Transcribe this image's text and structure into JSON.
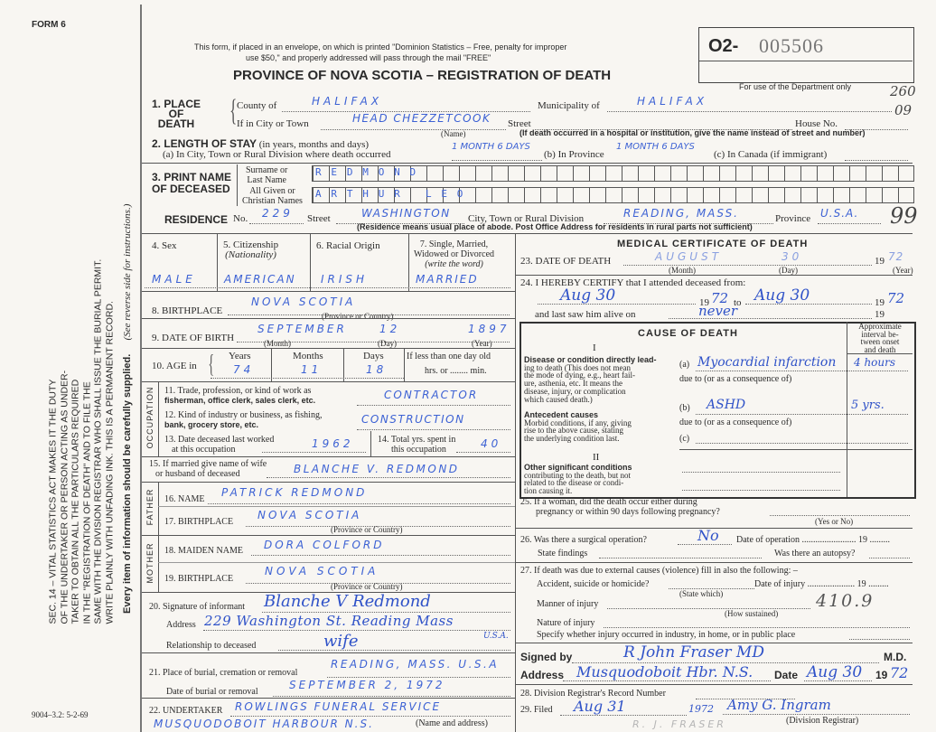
{
  "header": {
    "form_number": "FORM 6",
    "notice_line1": "This form, if placed in an envelope, on which is printed \"Dominion Statistics – Free, penalty for improper",
    "notice_line2": "use $50,\" and properly addressed will pass through the mail \"FREE\"",
    "title": "PROVINCE OF NOVA SCOTIA – REGISTRATION OF DEATH",
    "serial_prefix": "O2-",
    "serial_number": "005506",
    "dept_use": "For use of the Department only",
    "dept_code1": "260",
    "dept_code2": "09",
    "residence_code": "99"
  },
  "sidebar": {
    "statute": [
      "SEC. 14 – VITAL STATISTICS ACT MAKES IT THE DUTY",
      "OF THE UNDERTAKER OR PERSON ACTING AS UNDER-",
      "TAKER TO OBTAIN ALL THE PARTICULARS REQUIRED",
      "IN THE \"REGISTRATION OF DEATH\" AND TO FILE THE",
      "SAME WITH THE DIVISION REGISTRAR WHO SHALL ISSUE THE BURIAL PERMIT.",
      "WRITE PLAINLY WITH UNFADING INK. THIS IS A PERMANENT RECORD."
    ],
    "every_item": "Every item of information should be carefully supplied.",
    "see_reverse": "(See reverse side for instructions.)",
    "print_code": "9004–3.2: 5-2-69"
  },
  "place": {
    "label": [
      "1. PLACE",
      "OF",
      "DEATH"
    ],
    "county_label": "County of",
    "county": "HALIFAX",
    "municipality_label": "Municipality of",
    "municipality": "HALIFAX",
    "city_label": "If in City or Town",
    "city": "HEAD CHEZZETCOOK",
    "street_label": "Street",
    "house_label": "House No.",
    "name_note": "(Name)",
    "hospital_note": "(If death occurred in a hospital or institution, give the name instead of street and number)"
  },
  "stay": {
    "label": "2. LENGTH OF STAY",
    "label_note": "(in years, months and days)",
    "a_label": "(a) In City, Town or Rural Division where death occurred",
    "a_value": "1 MONTH 6 DAYS",
    "b_label": "(b) In Province",
    "b_value": "1 MONTH 6 DAYS",
    "c_label": "(c) In Canada (if immigrant)"
  },
  "name": {
    "label1": "3. PRINT NAME",
    "label2": "OF DECEASED",
    "surname_label1": "Surname or",
    "surname_label2": "Last Name",
    "given_label1": "All Given or",
    "given_label2": "Christian Names",
    "surname": "REDMOND",
    "given": "ARTHUR LEO"
  },
  "residence": {
    "label": "RESIDENCE",
    "no_label": "No.",
    "no": "229",
    "street_label": "Street",
    "street": "WASHINGTON",
    "city_label": "City, Town or Rural Division",
    "city": "READING, MASS.",
    "province_label": "Province",
    "province": "U.S.A.",
    "note": "(Residence means usual place of abode. Post Office Address for residents in rural parts not sufficient)"
  },
  "personal": {
    "sex_label": "4. Sex",
    "sex": "MALE",
    "citizenship_label": "5. Citizenship",
    "citizenship_note": "(Nationality)",
    "citizenship": "AMERICAN",
    "racial_label": "6. Racial Origin",
    "racial": "IRISH",
    "marital_label1": "7. Single, Married,",
    "marital_label2": "Widowed or Divorced",
    "marital_note": "(write the word)",
    "marital": "MARRIED",
    "birthplace_label": "8. BIRTHPLACE",
    "birthplace": "NOVA SCOTIA",
    "prov_note": "(Province or Country)",
    "dob_label": "9. DATE OF BIRTH",
    "dob_month": "SEPTEMBER",
    "dob_day": "12",
    "dob_year": "1897",
    "month_note": "(Month)",
    "day_note": "(Day)",
    "year_note": "(Year)",
    "age_label": "10. AGE in",
    "years_label": "Years",
    "years": "74",
    "months_label": "Months",
    "months": "11",
    "days_label": "Days",
    "days": "18",
    "less_day": "If less than one day old",
    "hrs_min": "hrs. or ........ min."
  },
  "occupation": {
    "section": "OCCUPATION",
    "q11a": "11. Trade, profession, or kind of work as",
    "q11b": "fisherman, office clerk, sales clerk, etc.",
    "a11": "CONTRACTOR",
    "q12a": "12. Kind of industry or business, as fishing,",
    "q12b": "bank, grocery store, etc.",
    "a12": "CONSTRUCTION",
    "q13a": "13. Date deceased last worked",
    "q13b": "at this occupation",
    "a13": "1962",
    "q14a": "14. Total yrs. spent in",
    "q14b": "this occupation",
    "a14": "40"
  },
  "spouse": {
    "q1": "15. If married give name of wife",
    "q2": "or husband of deceased",
    "value": "BLANCHE V. REDMOND"
  },
  "father": {
    "section": "FATHER",
    "name_label": "16. NAME",
    "name": "PATRICK REDMOND",
    "birthplace_label": "17. BIRTHPLACE",
    "birthplace": "NOVA SCOTIA"
  },
  "mother": {
    "section": "MOTHER",
    "name_label": "18. MAIDEN NAME",
    "name": "DORA COLFORD",
    "birthplace_label": "19. BIRTHPLACE",
    "birthplace": "NOVA SCOTIA"
  },
  "informant": {
    "sig_label": "20. Signature of informant",
    "signature": "Blanche V Redmond",
    "address_label": "Address",
    "address": "229 Washington St. Reading Mass",
    "address2": "U.S.A.",
    "relationship_label": "Relationship to deceased",
    "relationship": "wife"
  },
  "burial": {
    "place_label": "21. Place of burial, cremation or removal",
    "place": "READING, MASS. U.S.A",
    "date_label": "Date of burial or removal",
    "date": "SEPTEMBER 2, 1972"
  },
  "undertaker": {
    "label": "22. UNDERTAKER",
    "name": "ROWLINGS FUNERAL SERVICE",
    "address": "MUSQUODOBOIT HARBOUR N.S.",
    "note": "(Name and address)"
  },
  "medical": {
    "title": "MEDICAL CERTIFICATE OF DEATH",
    "q23": "23. DATE OF DEATH",
    "death_month": "AUGUST",
    "death_day": "30",
    "death_year_prefix": "19",
    "death_year": "72",
    "q24": "24. I HEREBY CERTIFY that I attended deceased from:",
    "from": "Aug 30",
    "from_year": "72",
    "to_label": "to",
    "to": "Aug 30",
    "to_year": "72",
    "last_saw": "and last saw him alive on",
    "last_saw_value": "never"
  },
  "cause": {
    "title": "CAUSE OF DEATH",
    "part1": "I",
    "interval_header": [
      "Approximate",
      "interval be-",
      "tween onset",
      "and death"
    ],
    "direct_title": "Disease or condition directly lead-",
    "direct_text": [
      "ing to death (This does not mean",
      "the mode of dying, e.g., heart fail-",
      "ure, asthenia, etc. It means the",
      "disease, injury, or complication",
      "which caused death.)"
    ],
    "a_label": "(a)",
    "a_value": "Myocardial infarction",
    "a_interval": "4 hours",
    "due_to": "due to (or as a consequence of)",
    "antecedent_title": "Antecedent causes",
    "antecedent_text": [
      "Morbid conditions, if any, giving",
      "rise to the above cause, stating",
      "the underlying condition last."
    ],
    "b_label": "(b)",
    "b_value": "ASHD",
    "b_interval": "5 yrs.",
    "c_label": "(c)",
    "part2": "II",
    "other_title": "Other significant conditions",
    "other_text": [
      "contributing to the death, but not",
      "related to the disease or condi-",
      "tion causing it."
    ]
  },
  "questions": {
    "q25a": "25. If a woman, did the death occur either during",
    "q25b": "pregnancy or within 90 days following pregnancy?",
    "yes_no": "(Yes or No)",
    "q26": "26. Was there a surgical operation?",
    "a26": "No",
    "op_date": "Date of operation ........................ 19 .........",
    "findings": "State findings",
    "autopsy": "Was there an autopsy?",
    "q27": "27. If death was due to external causes (violence) fill in also the following: –",
    "accident": "Accident, suicide or homicide?",
    "injury_date": "Date of injury ..................... 19 .........",
    "state_which": "(State which)",
    "icd_code": "410.9",
    "manner": "Manner of injury",
    "how": "(How sustained)",
    "nature": "Nature of injury",
    "specify": "Specify whether injury occurred in industry, in home, or in public place"
  },
  "signoff": {
    "signed_label": "Signed by",
    "signature": "R John Fraser MD",
    "md": "M.D.",
    "address_label": "Address",
    "address": "Musquodoboit Hbr. N.S.",
    "date_label": "Date",
    "date": "Aug 30",
    "year_prefix": "19",
    "year": "72",
    "q28": "28. Division Registrar's Record Number",
    "q29": "29. Filed",
    "filed": "Aug 31",
    "filed_year": "1972",
    "registrar_sig": "Amy G. Ingram",
    "registrar_label": "(Division Registrar)",
    "stamp": "R. J. FRASER"
  }
}
